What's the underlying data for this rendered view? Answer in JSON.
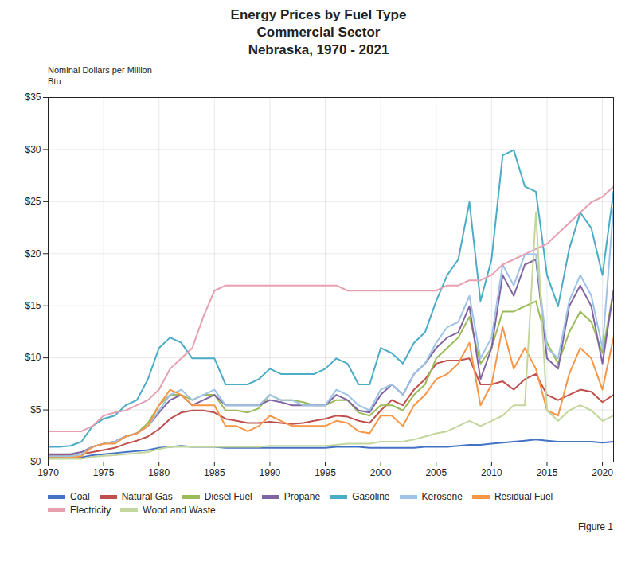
{
  "chart_data": {
    "type": "line",
    "title": [
      "Energy Prices by Fuel Type",
      "Commercial Sector",
      "Nebraska, 1970 - 2021"
    ],
    "ylabel": [
      "Nominal Dollars per Million",
      "Btu"
    ],
    "annotations": [
      "Figure 1"
    ],
    "x": [
      1970,
      1971,
      1972,
      1973,
      1974,
      1975,
      1976,
      1977,
      1978,
      1979,
      1980,
      1981,
      1982,
      1983,
      1984,
      1985,
      1986,
      1987,
      1988,
      1989,
      1990,
      1991,
      1992,
      1993,
      1994,
      1995,
      1996,
      1997,
      1998,
      1999,
      2000,
      2001,
      2002,
      2003,
      2004,
      2005,
      2006,
      2007,
      2008,
      2009,
      2010,
      2011,
      2012,
      2013,
      2014,
      2015,
      2016,
      2017,
      2018,
      2019,
      2020,
      2021
    ],
    "series": [
      {
        "name": "Coal",
        "color": "#4472C4",
        "values": [
          0.35,
          0.35,
          0.35,
          0.45,
          0.65,
          0.75,
          0.85,
          0.95,
          1.05,
          1.15,
          1.35,
          1.45,
          1.55,
          1.45,
          1.45,
          1.45,
          1.35,
          1.35,
          1.35,
          1.35,
          1.35,
          1.35,
          1.35,
          1.35,
          1.35,
          1.35,
          1.45,
          1.45,
          1.45,
          1.35,
          1.35,
          1.35,
          1.35,
          1.35,
          1.45,
          1.45,
          1.45,
          1.55,
          1.65,
          1.65,
          1.75,
          1.85,
          1.95,
          2.05,
          2.15,
          2.05,
          1.95,
          1.95,
          1.95,
          1.95,
          1.85,
          1.95
        ]
      },
      {
        "name": "Natural Gas",
        "color": "#C0504D",
        "values": [
          0.65,
          0.65,
          0.65,
          0.75,
          0.95,
          1.15,
          1.35,
          1.75,
          2.05,
          2.45,
          3.15,
          4.15,
          4.75,
          4.95,
          4.95,
          4.75,
          4.15,
          3.95,
          3.75,
          3.75,
          3.85,
          3.75,
          3.65,
          3.75,
          3.95,
          4.15,
          4.45,
          4.35,
          3.95,
          3.75,
          4.95,
          5.95,
          5.45,
          6.95,
          7.95,
          9.45,
          9.75,
          9.75,
          9.95,
          7.45,
          7.45,
          7.75,
          6.95,
          7.95,
          8.45,
          6.45,
          5.95,
          6.45,
          6.95,
          6.75,
          5.75,
          6.45
        ]
      },
      {
        "name": "Diesel Fuel",
        "color": "#9BBB59",
        "values": [
          0.5,
          0.5,
          0.55,
          0.75,
          1.45,
          1.75,
          1.95,
          2.45,
          2.75,
          3.75,
          5.45,
          6.45,
          6.45,
          5.95,
          6.45,
          6.45,
          4.95,
          4.95,
          4.75,
          5.15,
          6.45,
          5.95,
          5.95,
          5.75,
          5.45,
          5.45,
          5.95,
          5.95,
          4.75,
          4.45,
          5.45,
          5.45,
          4.95,
          6.45,
          7.45,
          9.95,
          10.95,
          11.95,
          13.95,
          9.45,
          10.95,
          14.45,
          14.45,
          14.95,
          15.45,
          11.45,
          9.45,
          12.45,
          14.45,
          13.45,
          10.45,
          16.45
        ]
      },
      {
        "name": "Propane",
        "color": "#8064A2",
        "values": [
          0.75,
          0.75,
          0.75,
          0.95,
          1.45,
          1.75,
          1.95,
          2.45,
          2.75,
          3.45,
          4.75,
          5.95,
          6.45,
          5.45,
          5.95,
          6.45,
          5.45,
          5.45,
          5.45,
          5.45,
          5.95,
          5.75,
          5.45,
          5.45,
          5.45,
          5.45,
          6.45,
          5.95,
          4.95,
          4.75,
          6.45,
          7.45,
          6.45,
          8.45,
          9.45,
          10.95,
          11.95,
          12.45,
          14.95,
          7.95,
          10.95,
          17.95,
          15.95,
          18.95,
          19.45,
          9.95,
          8.95,
          14.95,
          16.95,
          14.95,
          9.45,
          16.45
        ]
      },
      {
        "name": "Gasoline",
        "color": "#4BACC6",
        "values": [
          1.45,
          1.45,
          1.55,
          1.95,
          3.45,
          4.15,
          4.45,
          5.45,
          5.95,
          7.95,
          10.95,
          11.95,
          11.45,
          9.95,
          9.95,
          9.95,
          7.45,
          7.45,
          7.45,
          7.95,
          8.95,
          8.45,
          8.45,
          8.45,
          8.45,
          8.95,
          9.95,
          9.45,
          7.45,
          7.45,
          10.95,
          10.45,
          9.45,
          11.45,
          12.45,
          15.45,
          17.95,
          19.45,
          24.95,
          15.45,
          19.45,
          29.45,
          29.95,
          26.45,
          25.95,
          17.95,
          14.95,
          20.45,
          23.95,
          22.45,
          17.95,
          25.95
        ]
      },
      {
        "name": "Kerosene",
        "color": "#9DC3E6",
        "values": [
          0.55,
          0.55,
          0.55,
          0.75,
          1.45,
          1.75,
          1.95,
          2.45,
          2.75,
          3.45,
          4.95,
          6.45,
          6.95,
          5.95,
          6.45,
          6.95,
          5.45,
          5.45,
          5.45,
          5.45,
          6.45,
          5.95,
          5.95,
          5.45,
          5.45,
          5.45,
          6.95,
          6.45,
          5.45,
          4.95,
          6.95,
          7.45,
          6.45,
          8.45,
          9.45,
          11.45,
          12.95,
          13.45,
          15.95,
          9.95,
          11.95,
          18.95,
          16.95,
          19.95,
          19.95,
          10.95,
          9.95,
          15.45,
          17.95,
          15.95,
          10.95,
          24.45
        ]
      },
      {
        "name": "Residual Fuel",
        "color": "#F79646",
        "values": [
          0.4,
          0.4,
          0.4,
          0.55,
          1.45,
          1.75,
          1.75,
          2.45,
          2.75,
          3.45,
          5.45,
          6.95,
          6.45,
          5.45,
          5.45,
          5.45,
          3.45,
          3.45,
          2.95,
          3.45,
          4.45,
          3.95,
          3.45,
          3.45,
          3.45,
          3.45,
          3.95,
          3.75,
          2.95,
          2.75,
          4.45,
          4.45,
          3.45,
          5.45,
          6.45,
          7.95,
          8.45,
          9.45,
          11.45,
          5.45,
          7.45,
          12.95,
          8.95,
          10.95,
          8.95,
          4.95,
          4.45,
          8.45,
          10.95,
          9.95,
          6.95,
          11.95
        ]
      },
      {
        "name": "Electricity",
        "color": "#E6A0B0",
        "values": [
          2.95,
          2.95,
          2.95,
          2.95,
          3.45,
          4.45,
          4.75,
          4.95,
          5.45,
          5.95,
          6.95,
          8.95,
          9.95,
          10.95,
          13.95,
          16.45,
          16.95,
          16.95,
          16.95,
          16.95,
          16.95,
          16.95,
          16.95,
          16.95,
          16.95,
          16.95,
          16.95,
          16.45,
          16.45,
          16.45,
          16.45,
          16.45,
          16.45,
          16.45,
          16.45,
          16.45,
          16.95,
          16.95,
          17.45,
          17.45,
          17.95,
          18.95,
          19.45,
          19.95,
          20.45,
          20.95,
          21.95,
          22.95,
          23.95,
          24.95,
          25.45,
          26.45
        ]
      },
      {
        "name": "Wood and Waste",
        "color": "#C3D69B",
        "values": [
          0.3,
          0.3,
          0.3,
          0.3,
          0.5,
          0.6,
          0.65,
          0.75,
          0.85,
          0.95,
          1.25,
          1.45,
          1.45,
          1.45,
          1.45,
          1.45,
          1.45,
          1.45,
          1.45,
          1.45,
          1.55,
          1.55,
          1.55,
          1.55,
          1.55,
          1.55,
          1.65,
          1.75,
          1.75,
          1.75,
          1.95,
          1.95,
          1.95,
          2.15,
          2.45,
          2.75,
          2.95,
          3.45,
          3.95,
          3.45,
          3.95,
          4.45,
          5.45,
          5.45,
          24.0,
          4.95,
          3.95,
          4.95,
          5.45,
          4.95,
          3.95,
          4.45
        ]
      }
    ],
    "xlim": [
      1970,
      2021
    ],
    "xticks": [
      1970,
      1975,
      1980,
      1985,
      1990,
      1995,
      2000,
      2005,
      2010,
      2015,
      2020
    ],
    "ylim": [
      0,
      35
    ],
    "yticks": [
      {
        "value": 0,
        "label": "$0"
      },
      {
        "value": 5,
        "label": "$5"
      },
      {
        "value": 10,
        "label": "$10"
      },
      {
        "value": 15,
        "label": "$15"
      },
      {
        "value": 20,
        "label": "$20"
      },
      {
        "value": 25,
        "label": "$25"
      },
      {
        "value": 30,
        "label": "$30"
      },
      {
        "value": 35,
        "label": "$35"
      }
    ],
    "grid": true,
    "legend": "bottom"
  }
}
